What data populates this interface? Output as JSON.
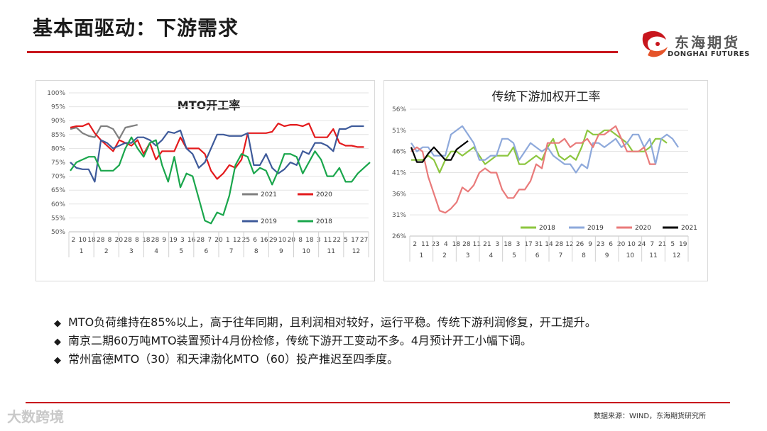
{
  "header": {
    "title": "基本面驱动：下游需求"
  },
  "brand": {
    "name_cn": "东海期货",
    "name_en": "DONGHAI FUTURES",
    "accent": "#c8161d"
  },
  "watermark": "大数跨境",
  "bullets": [
    "MTO负荷维持在85%以上，高于往年同期，且利润相对较好，运行平稳。传统下游利润修复，开工提升。",
    "南京二期60万吨MTO装置预计4月份检修，传统下游开工变动不多。4月预计开工小幅下调。",
    "常州富德MTO（30）和天津渤化MTO（60）投产推迟至四季度。"
  ],
  "footer": {
    "source": "数据来源：WIND，东海期货研究所"
  },
  "chart_data": [
    {
      "type": "line",
      "title": "MTO开工率",
      "y_ticks": [
        "100%",
        "95%",
        "90%",
        "85%",
        "80%",
        "75%",
        "70%",
        "65%",
        "60%",
        "55%",
        "50%"
      ],
      "ylim": [
        50,
        100
      ],
      "week_labels": [
        "2",
        "10",
        "18",
        "28",
        "8",
        "20",
        "28",
        "8",
        "18",
        "28",
        "9",
        "19",
        "3",
        "16",
        "28",
        "7",
        "20",
        "1",
        "12",
        "25",
        "6",
        "16",
        "29",
        "10",
        "20",
        "8",
        "18",
        "3",
        "11",
        "22",
        "5",
        "17",
        "27"
      ],
      "month_labels": [
        "1",
        "2",
        "3",
        "4",
        "5",
        "6",
        "7",
        "8",
        "9",
        "10",
        "11",
        "12"
      ],
      "series": [
        {
          "name": "2021",
          "color": "#7f7f7f",
          "values": [
            87,
            87.5,
            85.5,
            84.5,
            84,
            88,
            88,
            87,
            83.5,
            87.5,
            88,
            88.5
          ]
        },
        {
          "name": "2020",
          "color": "#e31a1c",
          "values": [
            87.5,
            88,
            88,
            89,
            85.5,
            83,
            81,
            79,
            83,
            82,
            81,
            83,
            78,
            82,
            76,
            79,
            79,
            79,
            84,
            80,
            80,
            80,
            78,
            72,
            69,
            71,
            74,
            73,
            76,
            85.5,
            85.5,
            85.5,
            85.5,
            86,
            89,
            88,
            88.5,
            88.5,
            88,
            89,
            84,
            84,
            84,
            87,
            82,
            81,
            81,
            80.5,
            80.5
          ]
        },
        {
          "name": "2019",
          "color": "#3e5a9a",
          "values": [
            75,
            73,
            72.5,
            72.5,
            68,
            83,
            82,
            80,
            81,
            82,
            82,
            84,
            84,
            83,
            81,
            83,
            86,
            85.5,
            86.5,
            80,
            78,
            73,
            75,
            80,
            85,
            85,
            84.5,
            84.5,
            84.5,
            85.5,
            74,
            74,
            78,
            73,
            71,
            72.5,
            75,
            74,
            79,
            78,
            82,
            82,
            81,
            79,
            87,
            87,
            88,
            88,
            88
          ]
        },
        {
          "name": "2018",
          "color": "#1aa64c",
          "values": [
            72,
            75,
            76,
            77,
            77,
            72,
            72,
            72,
            74,
            80,
            84,
            80,
            77,
            82,
            83,
            74,
            68,
            77,
            66,
            71,
            70,
            62,
            54,
            53,
            57,
            56,
            63,
            74,
            78,
            77,
            71,
            73,
            72,
            67,
            72,
            78,
            78,
            77,
            71,
            75,
            79,
            76,
            70,
            70,
            73,
            68,
            68,
            71,
            73,
            75
          ]
        }
      ],
      "legend": [
        "2021",
        "2020",
        "2019",
        "2018"
      ]
    },
    {
      "type": "line",
      "title": "传统下游加权开工率",
      "y_ticks": [
        "56%",
        "51%",
        "46%",
        "41%",
        "36%",
        "31%",
        "26%"
      ],
      "ylim": [
        26,
        56
      ],
      "week_labels": [
        "2",
        "11",
        "23",
        "4",
        "18",
        "28",
        "11",
        "21",
        "3",
        "18",
        "3",
        "17",
        "31",
        "14",
        "28",
        "12",
        "26",
        "9",
        "23",
        "6",
        "20",
        "10",
        "24",
        "7",
        "21",
        "5",
        "19"
      ],
      "month_labels": [
        "1",
        "2",
        "3",
        "4",
        "5",
        "6",
        "7",
        "8",
        "9",
        "10",
        "11",
        "12"
      ],
      "series": [
        {
          "name": "2018",
          "color": "#8cc63f",
          "values": [
            44,
            44,
            44,
            45,
            44,
            41,
            44,
            46,
            46,
            45,
            46,
            47,
            45,
            43,
            44,
            45,
            45,
            45,
            47,
            43,
            43,
            44,
            45,
            44,
            47,
            49,
            45,
            44,
            45,
            44,
            47,
            51,
            50,
            50,
            51,
            51,
            50,
            49,
            48,
            46,
            46,
            46,
            47,
            49,
            49,
            48
          ]
        },
        {
          "name": "2019",
          "color": "#8ea9db",
          "values": [
            48,
            46,
            47,
            47,
            45,
            45,
            45,
            50,
            51,
            52,
            50,
            48,
            44,
            44,
            45,
            45,
            49,
            49,
            48,
            44,
            46,
            48,
            47,
            46,
            47,
            45,
            44,
            43,
            43,
            41,
            43,
            42,
            48,
            48,
            47,
            48,
            49,
            47,
            48,
            50,
            50,
            47,
            49,
            43,
            49,
            50,
            49,
            47
          ]
        },
        {
          "name": "2020",
          "color": "#e97a7a",
          "values": [
            46,
            47,
            46,
            40,
            36,
            32,
            31.5,
            32.5,
            34,
            37.5,
            36.5,
            38,
            41,
            42,
            41,
            41,
            37,
            35,
            35,
            37,
            37,
            39,
            43,
            42,
            48,
            48,
            48,
            49,
            47,
            48,
            48,
            49,
            47,
            50,
            50,
            51,
            52,
            49,
            46,
            46,
            46,
            47,
            43,
            43
          ]
        },
        {
          "name": "2021",
          "color": "#000000",
          "values": [
            47,
            43.5,
            43.5,
            45.5,
            47,
            45.5,
            44,
            44,
            46.5,
            47.5,
            48.5
          ]
        }
      ],
      "legend": [
        "2018",
        "2019",
        "2020",
        "2021"
      ]
    }
  ]
}
